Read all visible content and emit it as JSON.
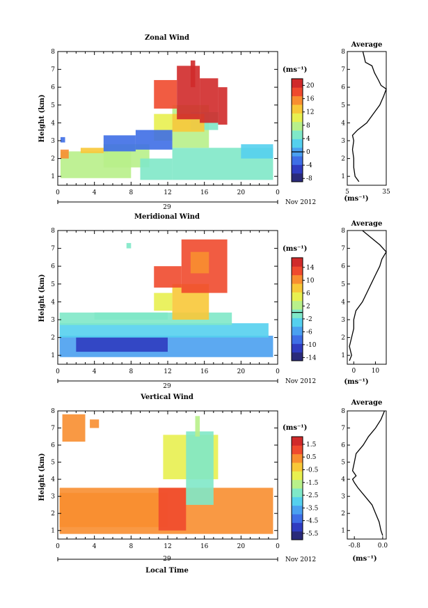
{
  "figure": {
    "x_label": "Local Time",
    "date_label": "Nov 2012",
    "day_label": "29",
    "unit_label": "(ms⁻¹)",
    "colormap": [
      "#2a2a7a",
      "#2f3cc0",
      "#3e6ee6",
      "#4aa0f0",
      "#55d0ee",
      "#7fe8c8",
      "#b8f08a",
      "#e8f050",
      "#f8c838",
      "#f88e30",
      "#ef4a2e",
      "#d02a2a"
    ]
  },
  "chart_data": [
    {
      "type": "heatmap",
      "title": "Zonal Wind",
      "xlabel": "",
      "ylabel": "Height (km)",
      "xlim": [
        0,
        24
      ],
      "ylim": [
        0.5,
        8
      ],
      "x_ticks": [
        "0",
        "4",
        "8",
        "12",
        "16",
        "20",
        "0"
      ],
      "y_ticks": [
        "1",
        "2",
        "3",
        "4",
        "5",
        "6",
        "7",
        "8"
      ],
      "colorbar": {
        "label": "(ms⁻¹)",
        "ticks": [
          "20",
          "16",
          "12",
          "8",
          "4",
          "0",
          "-4",
          "-8"
        ],
        "range": [
          -9,
          22
        ],
        "zero_line": 0
      },
      "fields": [
        {
          "x": [
            0.3,
            8
          ],
          "y": [
            0.9,
            2.4
          ],
          "v": 8
        },
        {
          "x": [
            2.5,
            5.5
          ],
          "y": [
            2.3,
            2.6
          ],
          "v": 14
        },
        {
          "x": [
            0.3,
            1.2
          ],
          "y": [
            2.0,
            2.5
          ],
          "v": 15
        },
        {
          "x": [
            5,
            10
          ],
          "y": [
            1.5,
            2.8
          ],
          "v": 7
        },
        {
          "x": [
            9,
            12.5
          ],
          "y": [
            0.8,
            2.0
          ],
          "v": 6
        },
        {
          "x": [
            12.5,
            23.5
          ],
          "y": [
            0.8,
            2.6
          ],
          "v": 4
        },
        {
          "x": [
            20,
            23.5
          ],
          "y": [
            2.0,
            2.8
          ],
          "v": 3
        },
        {
          "x": [
            10.5,
            12.5
          ],
          "y": [
            3.0,
            4.5
          ],
          "v": 10
        },
        {
          "x": [
            12.5,
            16.5
          ],
          "y": [
            2.6,
            5.0
          ],
          "v": 8
        },
        {
          "x": [
            14.5,
            17.5
          ],
          "y": [
            3.6,
            4.6
          ],
          "v": 6
        },
        {
          "x": [
            12.5,
            16
          ],
          "y": [
            3.5,
            4.5
          ],
          "v": 13
        },
        {
          "x": [
            5,
            8.5
          ],
          "y": [
            2.4,
            3.3
          ],
          "v": -2
        },
        {
          "x": [
            8.5,
            12.5
          ],
          "y": [
            2.5,
            3.6
          ],
          "v": -3
        },
        {
          "x": [
            0.3,
            0.8
          ],
          "y": [
            2.9,
            3.2
          ],
          "v": -2
        },
        {
          "x": [
            10.5,
            13
          ],
          "y": [
            4.8,
            6.4
          ],
          "v": 19
        },
        {
          "x": [
            13,
            15.5
          ],
          "y": [
            4.2,
            7.2
          ],
          "v": 20
        },
        {
          "x": [
            15.5,
            17.5
          ],
          "y": [
            4.0,
            6.5
          ],
          "v": 20
        },
        {
          "x": [
            17.5,
            18.5
          ],
          "y": [
            3.9,
            6.0
          ],
          "v": 20
        },
        {
          "x": [
            14.5,
            15
          ],
          "y": [
            6.0,
            7.5
          ],
          "v": 21
        }
      ],
      "avg_profile": {
        "title": "Average",
        "xlabel": "(ms⁻¹)",
        "xlim": [
          5,
          35
        ],
        "x_ticks": [
          "5",
          "35"
        ],
        "points": [
          [
            14,
            0.7
          ],
          [
            11,
            1.0
          ],
          [
            10,
            1.5
          ],
          [
            10,
            2.0
          ],
          [
            9,
            2.5
          ],
          [
            10,
            3.0
          ],
          [
            9,
            3.3
          ],
          [
            13,
            3.6
          ],
          [
            20,
            4.0
          ],
          [
            25,
            4.5
          ],
          [
            30,
            5.0
          ],
          [
            33,
            5.5
          ],
          [
            35,
            5.9
          ],
          [
            31,
            6.1
          ],
          [
            29,
            6.4
          ],
          [
            26,
            6.8
          ],
          [
            24,
            7.2
          ],
          [
            19,
            7.4
          ],
          [
            18,
            7.7
          ],
          [
            17,
            8.0
          ]
        ]
      }
    },
    {
      "type": "heatmap",
      "title": "Meridional Wind",
      "xlabel": "",
      "ylabel": "Height (km)",
      "xlim": [
        0,
        24
      ],
      "ylim": [
        0.5,
        8
      ],
      "x_ticks": [
        "0",
        "4",
        "8",
        "12",
        "16",
        "20",
        "0"
      ],
      "y_ticks": [
        "1",
        "2",
        "3",
        "4",
        "5",
        "6",
        "7",
        "8"
      ],
      "colorbar": {
        "label": "(ms⁻¹)",
        "ticks": [
          "14",
          "10",
          "6",
          "2",
          "-2",
          "-6",
          "-10",
          "-14"
        ],
        "range": [
          -15,
          17
        ],
        "zero_line": 0
      },
      "fields": [
        {
          "x": [
            0.2,
            23.5
          ],
          "y": [
            0.9,
            2.1
          ],
          "v": -7
        },
        {
          "x": [
            2,
            12
          ],
          "y": [
            1.2,
            2.0
          ],
          "v": -11
        },
        {
          "x": [
            0.2,
            23
          ],
          "y": [
            2.0,
            2.8
          ],
          "v": -4
        },
        {
          "x": [
            0.2,
            19
          ],
          "y": [
            2.7,
            3.4
          ],
          "v": -1
        },
        {
          "x": [
            4,
            12
          ],
          "y": [
            3.0,
            3.4
          ],
          "v": 0
        },
        {
          "x": [
            10.5,
            12.5
          ],
          "y": [
            3.5,
            4.5
          ],
          "v": 4
        },
        {
          "x": [
            12.5,
            16.5
          ],
          "y": [
            3.0,
            5.0
          ],
          "v": 8
        },
        {
          "x": [
            10.5,
            13.5
          ],
          "y": [
            4.8,
            6.0
          ],
          "v": 13
        },
        {
          "x": [
            13.5,
            18.5
          ],
          "y": [
            4.5,
            7.5
          ],
          "v": 14
        },
        {
          "x": [
            14.5,
            16.5
          ],
          "y": [
            5.6,
            6.8
          ],
          "v": 10
        },
        {
          "x": [
            7.5,
            8
          ],
          "y": [
            7.0,
            7.3
          ],
          "v": -1
        }
      ],
      "avg_profile": {
        "title": "Average",
        "xlabel": "(ms⁻¹)",
        "xlim": [
          -3,
          15
        ],
        "x_ticks": [
          "0",
          "10"
        ],
        "points": [
          [
            -2,
            0.7
          ],
          [
            -1,
            1.0
          ],
          [
            -2,
            1.5
          ],
          [
            -1,
            2.0
          ],
          [
            0,
            2.5
          ],
          [
            0,
            3.0
          ],
          [
            1,
            3.5
          ],
          [
            4,
            4.0
          ],
          [
            6,
            4.5
          ],
          [
            8,
            5.0
          ],
          [
            10,
            5.5
          ],
          [
            12,
            6.0
          ],
          [
            13,
            6.4
          ],
          [
            15,
            6.8
          ],
          [
            12,
            7.2
          ],
          [
            8,
            7.6
          ],
          [
            4,
            8.0
          ]
        ]
      }
    },
    {
      "type": "heatmap",
      "title": "Vertical Wind",
      "xlabel": "Local Time",
      "ylabel": "Height (km)",
      "xlim": [
        0,
        24
      ],
      "ylim": [
        0.5,
        8
      ],
      "x_ticks": [
        "0",
        "4",
        "8",
        "12",
        "16",
        "20",
        "0"
      ],
      "y_ticks": [
        "1",
        "2",
        "3",
        "4",
        "5",
        "6",
        "7",
        "8"
      ],
      "colorbar": {
        "label": "(ms⁻¹)",
        "ticks": [
          "1.5",
          "0.5",
          "-0.5",
          "-1.5",
          "-2.5",
          "-3.5",
          "-4.5",
          "-5.5"
        ],
        "range": [
          -6,
          2.1
        ],
        "zero_line": null
      },
      "fields": [
        {
          "x": [
            0.2,
            23.5
          ],
          "y": [
            0.8,
            3.5
          ],
          "v": 0.6
        },
        {
          "x": [
            0.2,
            12
          ],
          "y": [
            1.2,
            3.2
          ],
          "v": 0.4
        },
        {
          "x": [
            11,
            14
          ],
          "y": [
            1.0,
            3.5
          ],
          "v": 0.9
        },
        {
          "x": [
            11.5,
            17.5
          ],
          "y": [
            4.0,
            6.6
          ],
          "v": -1.2
        },
        {
          "x": [
            14,
            17
          ],
          "y": [
            2.5,
            6.8
          ],
          "v": -2.2
        },
        {
          "x": [
            15,
            15.5
          ],
          "y": [
            6.5,
            7.7
          ],
          "v": -1.6
        },
        {
          "x": [
            0.5,
            3
          ],
          "y": [
            6.2,
            7.8
          ],
          "v": 0.7
        },
        {
          "x": [
            3.5,
            4.5
          ],
          "y": [
            7.0,
            7.5
          ],
          "v": 0.7
        }
      ],
      "avg_profile": {
        "title": "Average",
        "xlabel": "(ms⁻¹)",
        "xlim": [
          -1.0,
          0.1
        ],
        "x_ticks": [
          "-0.8",
          "0.0"
        ],
        "points": [
          [
            0.0,
            0.7
          ],
          [
            -0.05,
            1.0
          ],
          [
            -0.1,
            1.5
          ],
          [
            -0.2,
            2.0
          ],
          [
            -0.3,
            2.5
          ],
          [
            -0.5,
            3.0
          ],
          [
            -0.7,
            3.5
          ],
          [
            -0.8,
            3.8
          ],
          [
            -0.85,
            4.0
          ],
          [
            -0.75,
            4.2
          ],
          [
            -0.85,
            4.5
          ],
          [
            -0.8,
            5.0
          ],
          [
            -0.75,
            5.5
          ],
          [
            -0.55,
            6.0
          ],
          [
            -0.4,
            6.5
          ],
          [
            -0.2,
            7.0
          ],
          [
            -0.05,
            7.5
          ],
          [
            0.05,
            8.0
          ]
        ]
      }
    }
  ]
}
